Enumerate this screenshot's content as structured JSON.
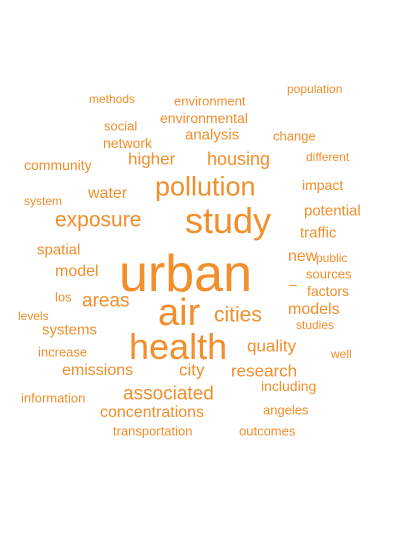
{
  "word_cloud": {
    "color": "#f28e2b",
    "words": [
      {
        "text": "urban",
        "weight": 100
      },
      {
        "text": "air",
        "weight": 70
      },
      {
        "text": "health",
        "weight": 68
      },
      {
        "text": "study",
        "weight": 66
      },
      {
        "text": "pollution",
        "weight": 52
      },
      {
        "text": "exposure",
        "weight": 38
      },
      {
        "text": "cities",
        "weight": 37
      },
      {
        "text": "areas",
        "weight": 33
      },
      {
        "text": "associated",
        "weight": 33
      },
      {
        "text": "housing",
        "weight": 31
      },
      {
        "text": "higher",
        "weight": 30
      },
      {
        "text": "quality",
        "weight": 30
      },
      {
        "text": "city",
        "weight": 30
      },
      {
        "text": "research",
        "weight": 29
      },
      {
        "text": "water",
        "weight": 28
      },
      {
        "text": "model",
        "weight": 27
      },
      {
        "text": "emissions",
        "weight": 27
      },
      {
        "text": "models",
        "weight": 27
      },
      {
        "text": "concentrations",
        "weight": 26
      },
      {
        "text": "new",
        "weight": 26
      },
      {
        "text": "spatial",
        "weight": 25
      },
      {
        "text": "systems",
        "weight": 25
      },
      {
        "text": "traffic",
        "weight": 24
      },
      {
        "text": "analysis",
        "weight": 24
      },
      {
        "text": "potential",
        "weight": 24
      },
      {
        "text": "–",
        "weight": 23
      },
      {
        "text": "including",
        "weight": 23
      },
      {
        "text": "environmental",
        "weight": 22
      },
      {
        "text": "network",
        "weight": 22
      },
      {
        "text": "impact",
        "weight": 22
      },
      {
        "text": "community",
        "weight": 22
      },
      {
        "text": "factors",
        "weight": 22
      },
      {
        "text": "social",
        "weight": 21
      },
      {
        "text": "environment",
        "weight": 21
      },
      {
        "text": "change",
        "weight": 21
      },
      {
        "text": "sources",
        "weight": 21
      },
      {
        "text": "transportation",
        "weight": 21
      },
      {
        "text": "outcomes",
        "weight": 21
      },
      {
        "text": "information",
        "weight": 21
      },
      {
        "text": "angeles",
        "weight": 21
      },
      {
        "text": "los",
        "weight": 21
      },
      {
        "text": "increase",
        "weight": 21
      },
      {
        "text": "different",
        "weight": 20
      },
      {
        "text": "methods",
        "weight": 20
      },
      {
        "text": "population",
        "weight": 20
      },
      {
        "text": "system",
        "weight": 20
      },
      {
        "text": "levels",
        "weight": 20
      },
      {
        "text": "studies",
        "weight": 20
      },
      {
        "text": "public",
        "weight": 20
      },
      {
        "text": "well",
        "weight": 20
      }
    ]
  }
}
